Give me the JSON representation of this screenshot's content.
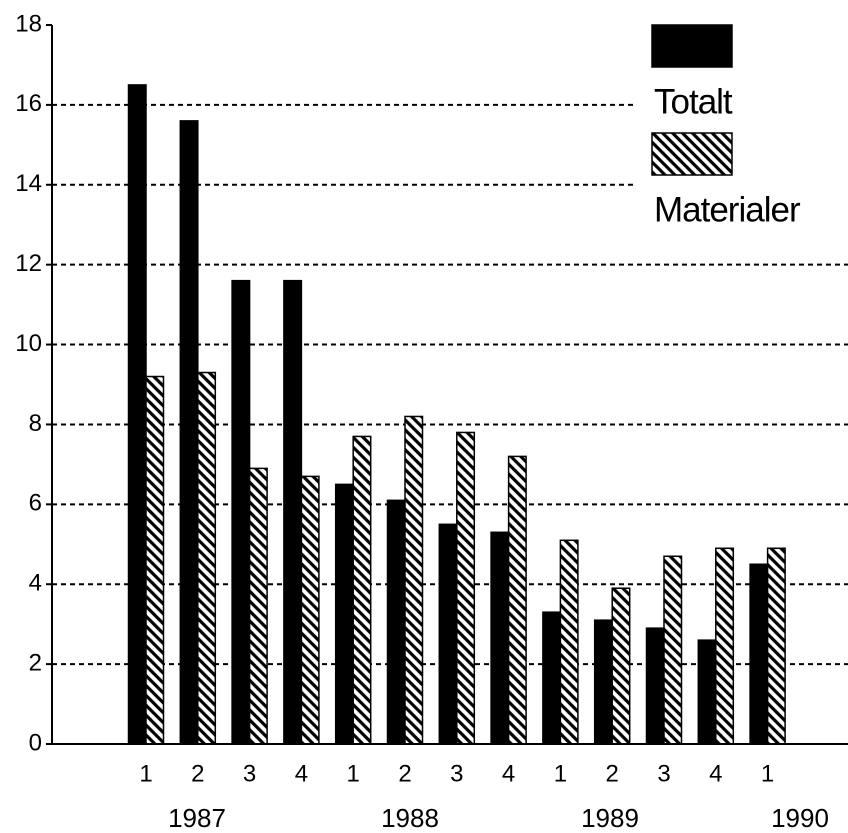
{
  "chart_data": {
    "type": "bar",
    "categories": [
      "1",
      "2",
      "3",
      "4",
      "1",
      "2",
      "3",
      "4",
      "1",
      "2",
      "3",
      "4",
      "1"
    ],
    "years": [
      "1987",
      "1988",
      "1989",
      "1990"
    ],
    "series": [
      {
        "name": "Totalt",
        "color": "#000000",
        "fill": "solid",
        "values": [
          16.5,
          15.6,
          11.6,
          11.6,
          6.5,
          6.1,
          5.5,
          5.3,
          3.3,
          3.1,
          2.9,
          2.6,
          4.5
        ]
      },
      {
        "name": "Materialer",
        "color": "#000000",
        "fill": "hatch",
        "values": [
          9.2,
          9.3,
          6.9,
          6.7,
          7.7,
          8.2,
          7.8,
          7.2,
          5.1,
          3.9,
          4.7,
          4.9,
          4.9
        ]
      }
    ],
    "ylim": [
      0,
      18
    ],
    "yticks": [
      0,
      2,
      4,
      6,
      8,
      10,
      12,
      14,
      16,
      18
    ],
    "grid": true,
    "legend": "top-right"
  }
}
